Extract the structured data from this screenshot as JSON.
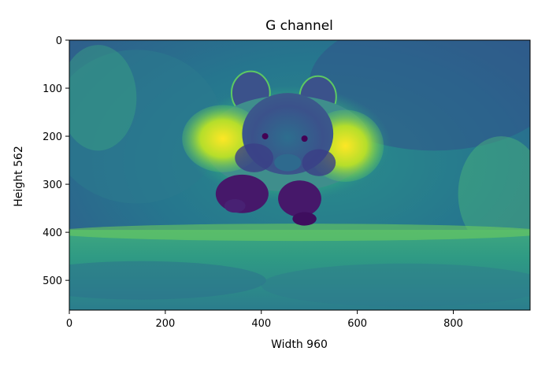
{
  "chart_data": {
    "type": "heatmap",
    "title": "G channel",
    "xlabel": "Width 960",
    "ylabel": "Height 562",
    "xlim": [
      0,
      960
    ],
    "ylim": [
      562,
      0
    ],
    "x_ticks": [
      0,
      200,
      400,
      600,
      800
    ],
    "y_ticks": [
      0,
      100,
      200,
      300,
      400,
      500
    ],
    "colormap": "viridis",
    "colormap_stops": [
      "#440154",
      "#3b528b",
      "#21908d",
      "#5dc863",
      "#fde725"
    ],
    "image_size": {
      "width": 960,
      "height": 562
    },
    "grid": false,
    "legend": "none"
  }
}
